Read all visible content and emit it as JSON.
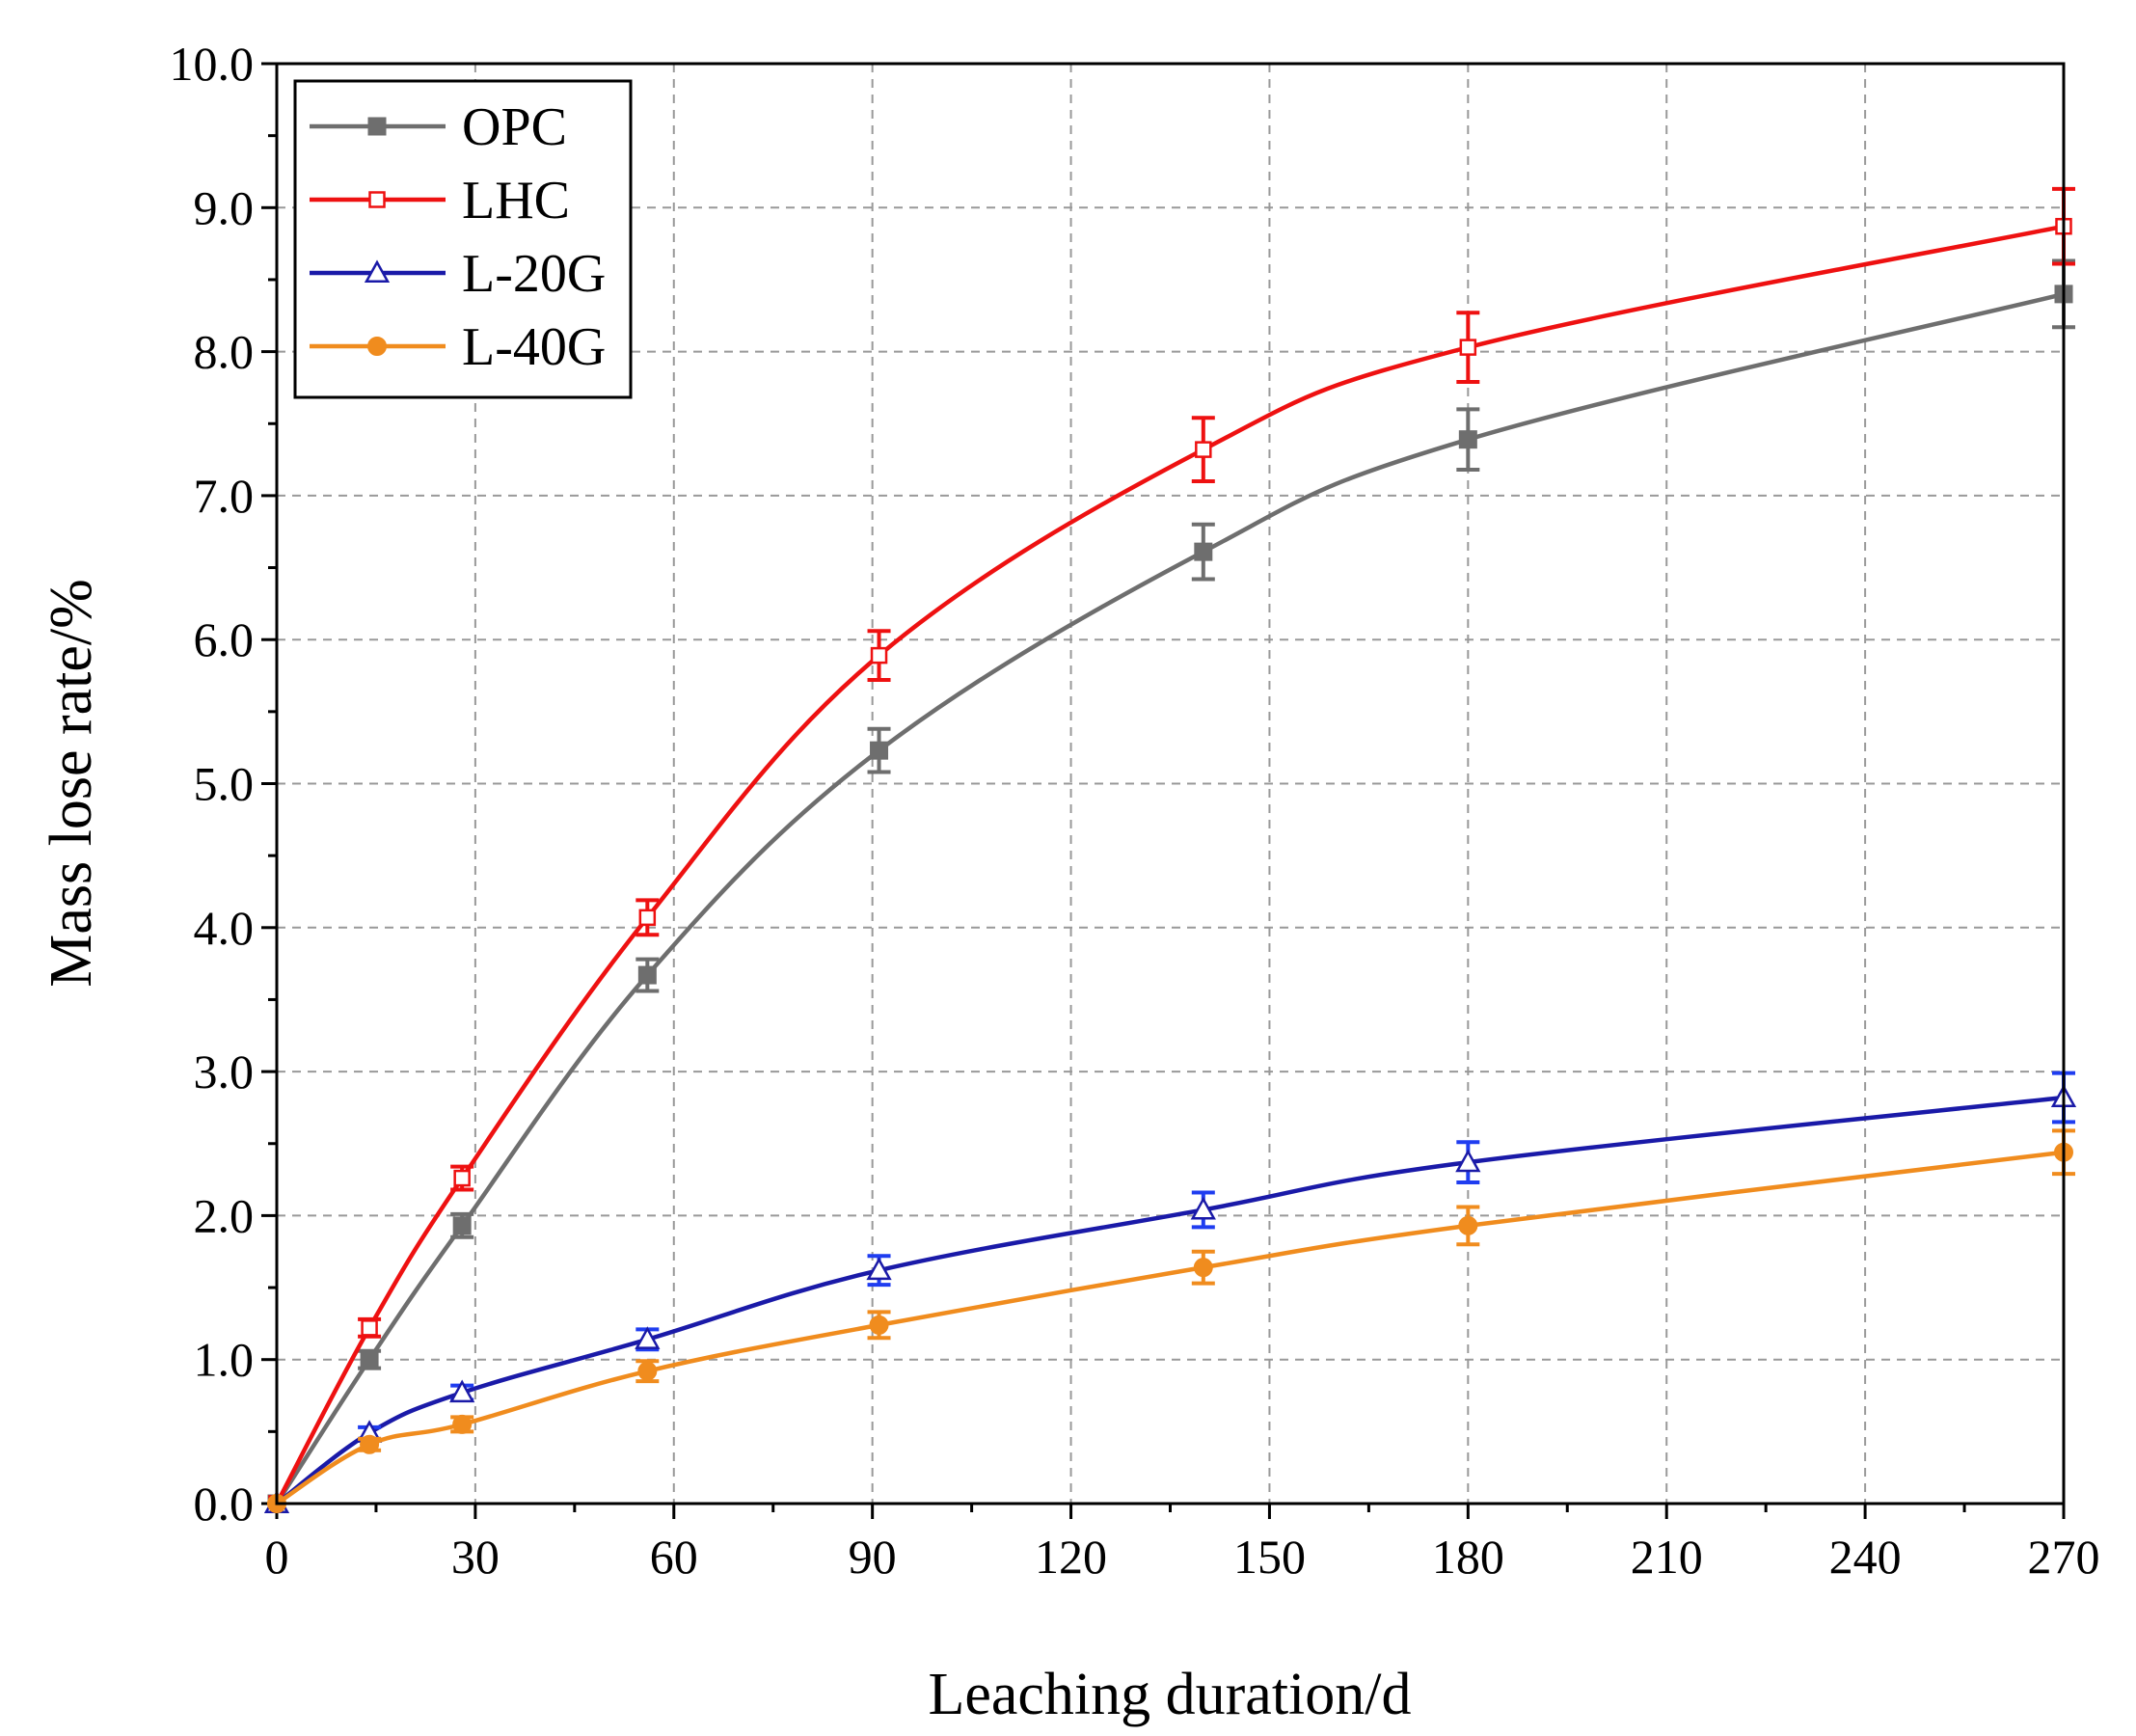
{
  "chart_data": {
    "type": "line",
    "title": "",
    "xlabel": "Leaching duration/d",
    "ylabel": "Mass lose rate/%",
    "xlim": [
      0,
      270
    ],
    "ylim": [
      0,
      10
    ],
    "xticks": [
      "0",
      "30",
      "60",
      "90",
      "120",
      "150",
      "180",
      "210",
      "240",
      "270"
    ],
    "yticks": [
      "0.0",
      "1.0",
      "2.0",
      "3.0",
      "4.0",
      "5.0",
      "6.0",
      "7.0",
      "8.0",
      "9.0",
      "10.0"
    ],
    "grid": true,
    "legend_position": "top-left",
    "x": [
      0,
      14,
      28,
      56,
      91,
      140,
      180,
      270
    ],
    "series": [
      {
        "name": "OPC",
        "color": "#6e6e6e",
        "marker": "filled-square",
        "values": [
          0,
          1.0,
          1.93,
          3.67,
          5.23,
          6.61,
          7.39,
          8.4
        ],
        "errors": [
          0,
          0.06,
          0.08,
          0.11,
          0.15,
          0.19,
          0.21,
          0.23
        ]
      },
      {
        "name": "LHC",
        "color": "#ee1111",
        "marker": "open-square",
        "values": [
          0,
          1.22,
          2.26,
          4.07,
          5.89,
          7.32,
          8.03,
          8.87
        ],
        "errors": [
          0,
          0.06,
          0.08,
          0.12,
          0.17,
          0.22,
          0.24,
          0.26
        ]
      },
      {
        "name": "L-20G",
        "color": "#1a1aa8",
        "marker": "open-triangle",
        "values": [
          0,
          0.49,
          0.77,
          1.14,
          1.62,
          2.04,
          2.37,
          2.82
        ],
        "errors": [
          0,
          0.04,
          0.05,
          0.07,
          0.1,
          0.12,
          0.14,
          0.17
        ]
      },
      {
        "name": "L-40G",
        "color": "#f08c1e",
        "marker": "filled-circle",
        "values": [
          0,
          0.41,
          0.55,
          0.92,
          1.24,
          1.64,
          1.93,
          2.44
        ],
        "errors": [
          0,
          0.04,
          0.05,
          0.07,
          0.09,
          0.11,
          0.13,
          0.15
        ]
      }
    ]
  }
}
